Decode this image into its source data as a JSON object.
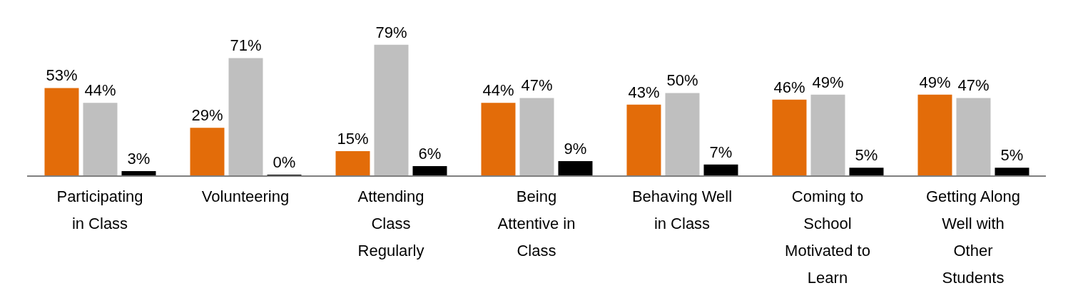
{
  "chart_data": {
    "type": "bar",
    "categories": [
      "Participating in Class",
      "Volunteering",
      "Attending Class Regularly",
      "Being Attentive in Class",
      "Behaving Well in Class",
      "Coming to School Motivated to Learn",
      "Getting Along Well with Other Students"
    ],
    "series": [
      {
        "color": "#e36c09",
        "values": [
          53,
          29,
          15,
          44,
          43,
          46,
          49
        ],
        "value_labels": [
          "53%",
          "29%",
          "15%",
          "44%",
          "43%",
          "46%",
          "49%"
        ]
      },
      {
        "color": "#bfbfbf",
        "values": [
          44,
          71,
          79,
          47,
          50,
          49,
          47
        ],
        "value_labels": [
          "44%",
          "71%",
          "79%",
          "47%",
          "50%",
          "49%",
          "47%"
        ]
      },
      {
        "color": "#000000",
        "values": [
          3,
          0,
          6,
          9,
          7,
          5,
          5
        ],
        "value_labels": [
          "3%",
          "0%",
          "6%",
          "9%",
          "7%",
          "5%",
          "5%"
        ]
      }
    ],
    "grid": false,
    "legend": false
  }
}
